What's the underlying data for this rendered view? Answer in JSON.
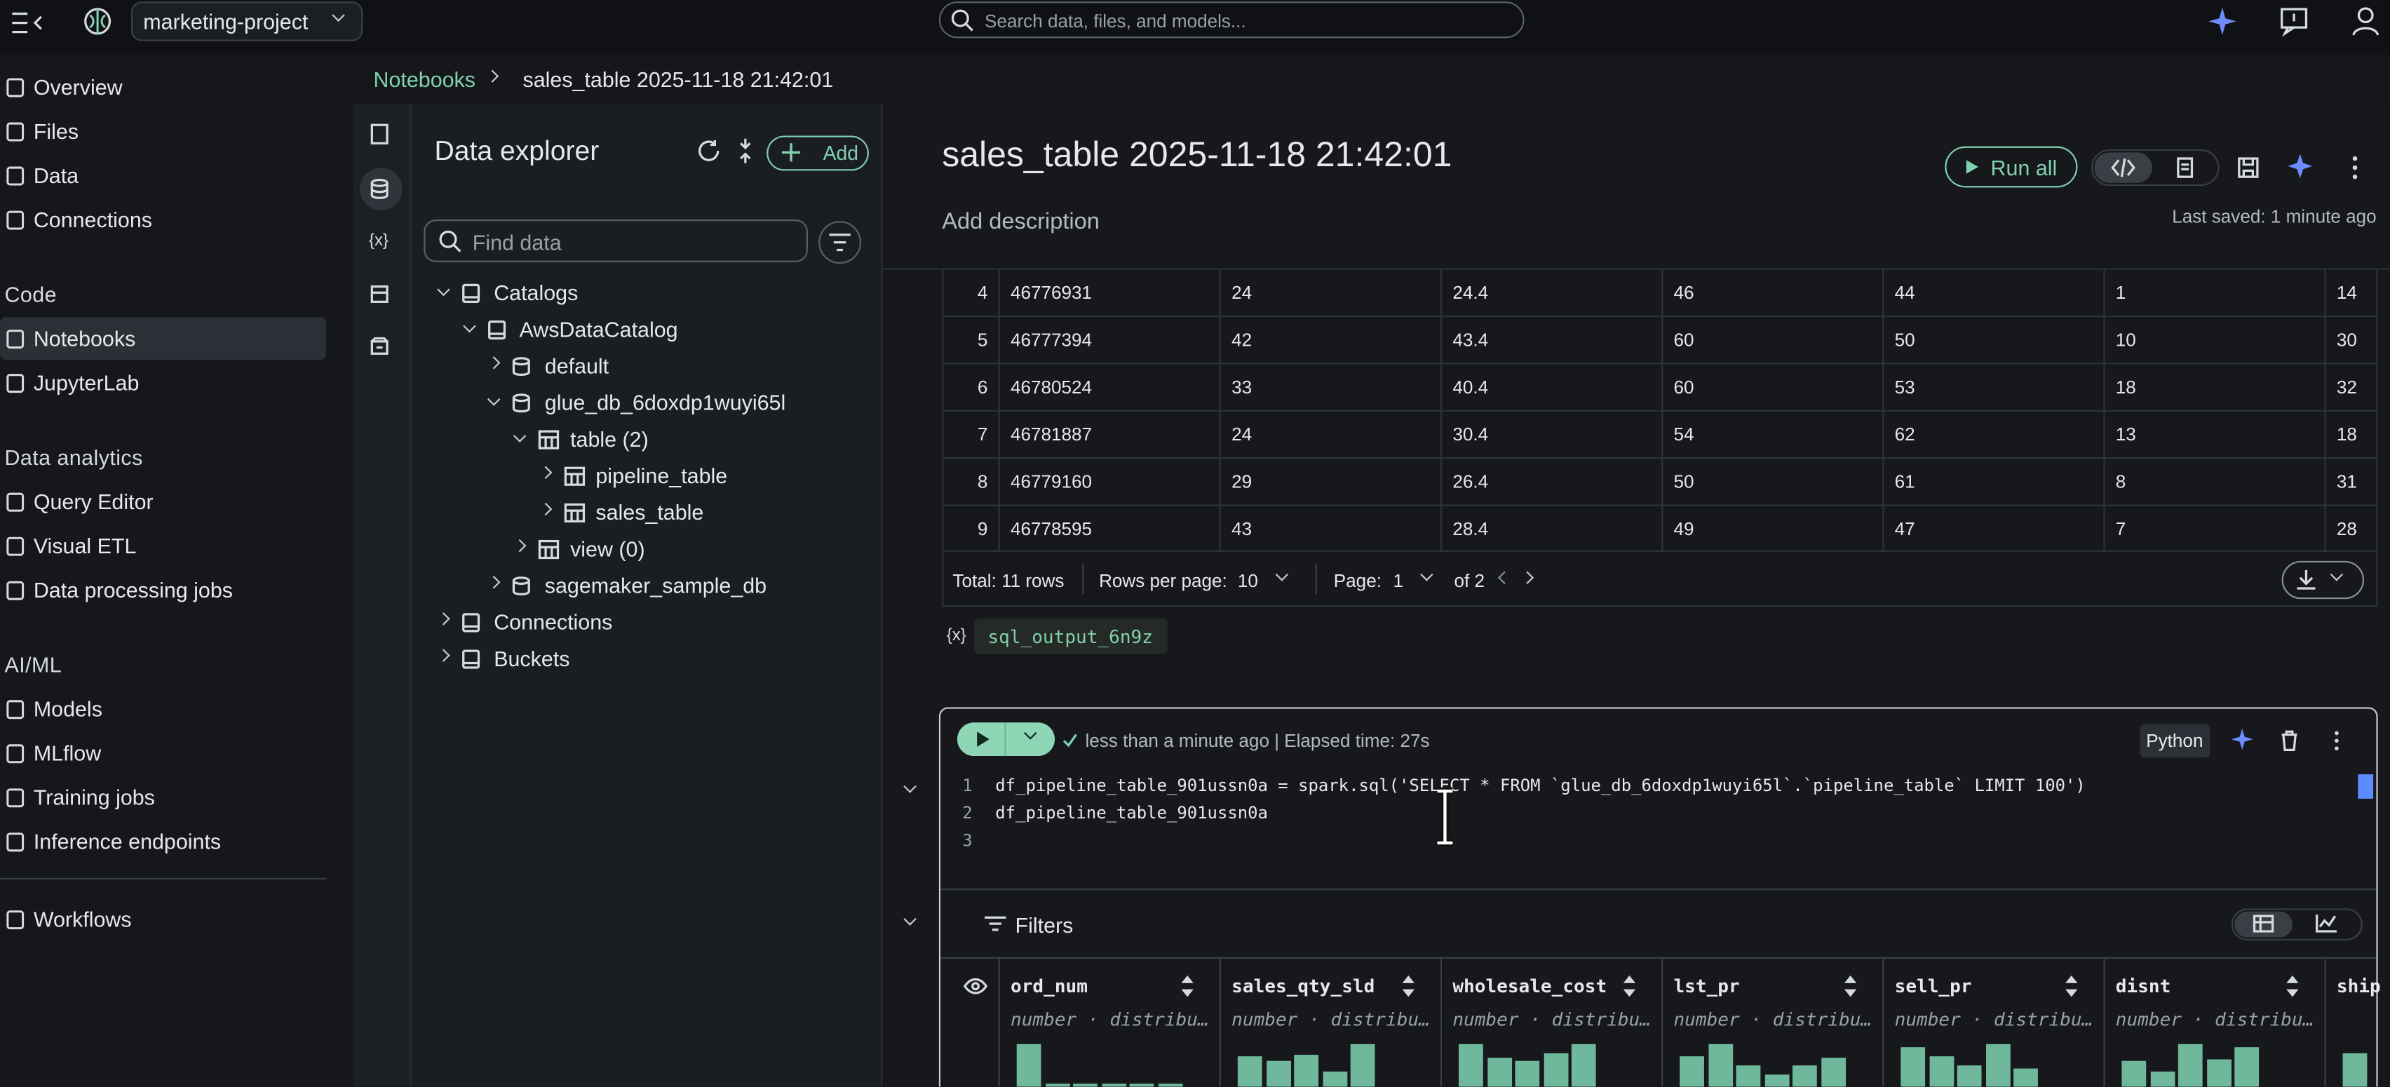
{
  "topbar": {
    "project": "marketing-project",
    "search_placeholder": "Search data, files, and models..."
  },
  "sidebar": {
    "top": [
      "Overview",
      "Files",
      "Data",
      "Connections"
    ],
    "sections": [
      {
        "heading": "Code",
        "items": [
          "Notebooks",
          "JupyterLab"
        ]
      },
      {
        "heading": "Data analytics",
        "items": [
          "Query Editor",
          "Visual ETL",
          "Data processing jobs"
        ]
      },
      {
        "heading": "AI/ML",
        "items": [
          "Models",
          "MLflow",
          "Training jobs",
          "Inference endpoints"
        ]
      }
    ],
    "bottom": [
      "Workflows"
    ],
    "active": "Notebooks"
  },
  "breadcrumb": [
    "Notebooks",
    "sales_table 2025-11-18 21:42:01"
  ],
  "variables_icon": "{x}",
  "explorer": {
    "title": "Data explorer",
    "add": "Add",
    "search_placeholder": "Find data",
    "tree": [
      {
        "label": "Catalogs",
        "depth": 0,
        "open": true
      },
      {
        "label": "AwsDataCatalog",
        "depth": 1,
        "open": true
      },
      {
        "label": "default",
        "depth": 2,
        "open": false
      },
      {
        "label": "glue_db_6doxdp1wuyi65l",
        "depth": 2,
        "open": true
      },
      {
        "label": "table (2)",
        "depth": 3,
        "open": true
      },
      {
        "label": "pipeline_table",
        "depth": 4,
        "open": false
      },
      {
        "label": "sales_table",
        "depth": 4,
        "open": false
      },
      {
        "label": "view (0)",
        "depth": 3,
        "open": false
      },
      {
        "label": "sagemaker_sample_db",
        "depth": 2,
        "open": false
      },
      {
        "label": "Connections",
        "depth": 0,
        "open": false
      },
      {
        "label": "Buckets",
        "depth": 0,
        "open": false
      }
    ]
  },
  "notebook": {
    "title": "sales_table 2025-11-18 21:42:01",
    "description": "Add description",
    "run_all": "Run all",
    "last_saved": "Last saved: 1 minute ago"
  },
  "output_table": {
    "rows": [
      [
        4,
        46776931,
        24,
        24.4,
        46,
        44,
        1,
        14
      ],
      [
        5,
        46777394,
        42,
        43.4,
        60,
        50,
        10,
        30
      ],
      [
        6,
        46780524,
        33,
        40.4,
        60,
        53,
        18,
        32
      ],
      [
        7,
        46781887,
        24,
        30.4,
        54,
        62,
        13,
        18
      ],
      [
        8,
        46779160,
        29,
        26.4,
        50,
        61,
        8,
        31
      ],
      [
        9,
        46778595,
        43,
        28.4,
        49,
        47,
        7,
        28
      ]
    ],
    "total": "Total: 11 rows",
    "rows_per_page_label": "Rows per page:",
    "rows_per_page": 10,
    "page_label": "Page:",
    "page": 1,
    "page_count": "of 2"
  },
  "variable_name": "sql_output_6n9z",
  "cell": {
    "status": "less than a minute ago | Elapsed time: 27s",
    "language": "Python",
    "code": [
      {
        "line": 1,
        "text": "df_pipeline_table_901ussn0a = spark.sql('SELECT * FROM `glue_db_6doxdp1wuyi65l`.`pipeline_table` LIMIT 100')"
      },
      {
        "line": 2,
        "text": "df_pipeline_table_901ussn0a"
      },
      {
        "line": 3
      }
    ],
    "filters": "Filters",
    "columns": [
      {
        "name": "ord_num",
        "meta": "number · distribu…",
        "histogram": [
          28,
          2,
          2,
          2,
          2,
          2
        ]
      },
      {
        "name": "sales_qty_sld",
        "meta": "number · distribu…",
        "histogram": [
          20,
          17,
          21,
          10,
          28
        ]
      },
      {
        "name": "wholesale_cost",
        "meta": "number · distribu…",
        "histogram": [
          28,
          19,
          17,
          22,
          28
        ]
      },
      {
        "name": "lst_pr",
        "meta": "number · distribu…",
        "histogram": [
          20,
          28,
          14,
          8,
          14,
          19
        ]
      },
      {
        "name": "sell_pr",
        "meta": "number · distribu…",
        "histogram": [
          26,
          20,
          14,
          28,
          12
        ]
      },
      {
        "name": "disnt",
        "meta": "number · distribu…",
        "histogram": [
          17,
          10,
          28,
          18,
          26
        ]
      },
      {
        "name": "ship",
        "meta": "",
        "histogram": [
          22
        ]
      }
    ]
  }
}
